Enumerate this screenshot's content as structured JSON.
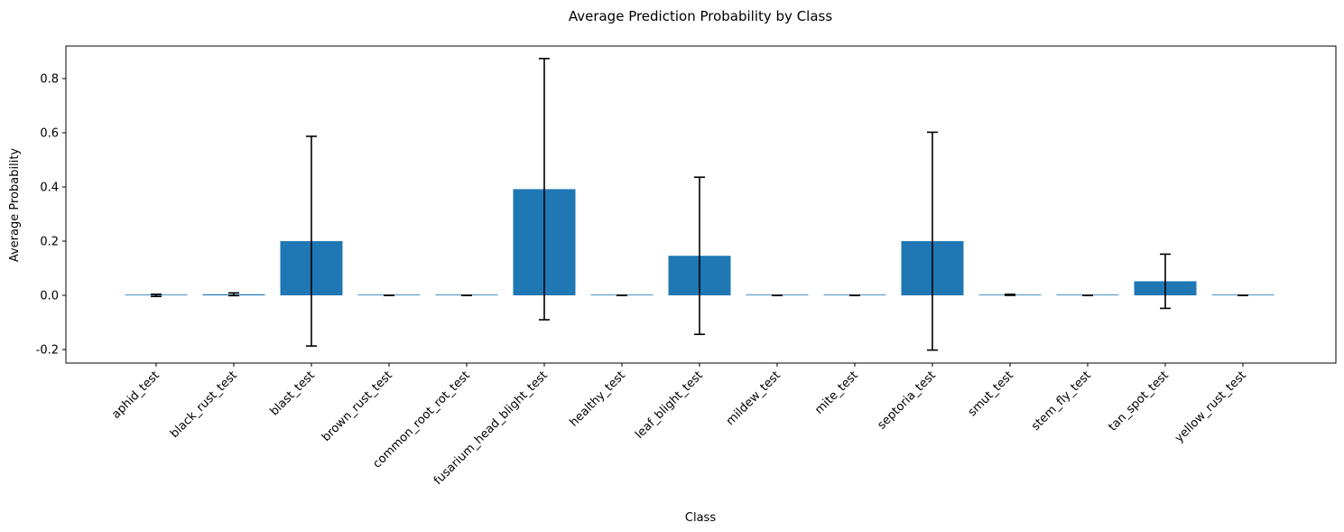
{
  "chart_data": {
    "type": "bar",
    "title": "Average Prediction Probability by Class",
    "xlabel": "Class",
    "ylabel": "Average Probability",
    "categories": [
      "aphid_test",
      "black_rust_test",
      "blast_test",
      "brown_rust_test",
      "common_root_rot_test",
      "fusarium_head_blight_test",
      "healthy_test",
      "leaf_blight_test",
      "mildew_test",
      "mite_test",
      "septoria_test",
      "smut_test",
      "stem_fly_test",
      "tan_spot_test",
      "yellow_rust_test"
    ],
    "values": [
      0.0,
      0.004,
      0.2,
      0.0,
      0.0,
      0.392,
      0.0,
      0.146,
      0.0,
      0.0,
      0.2,
      0.002,
      0.0,
      0.052,
      0.0
    ],
    "errors": [
      0.004,
      0.005,
      0.387,
      0.0,
      0.0,
      0.482,
      0.0,
      0.29,
      0.0,
      0.0,
      0.402,
      0.002,
      0.0,
      0.1,
      0.0
    ],
    "ylim": [
      -0.25,
      0.92
    ],
    "yticks": [
      -0.2,
      0.0,
      0.2,
      0.4,
      0.6,
      0.8
    ],
    "ytick_labels": [
      "-0.2",
      "0.0",
      "0.2",
      "0.4",
      "0.6",
      "0.8"
    ],
    "bar_color": "#1f77b4",
    "error_color": "#000000",
    "grid": false,
    "legend": "none"
  }
}
